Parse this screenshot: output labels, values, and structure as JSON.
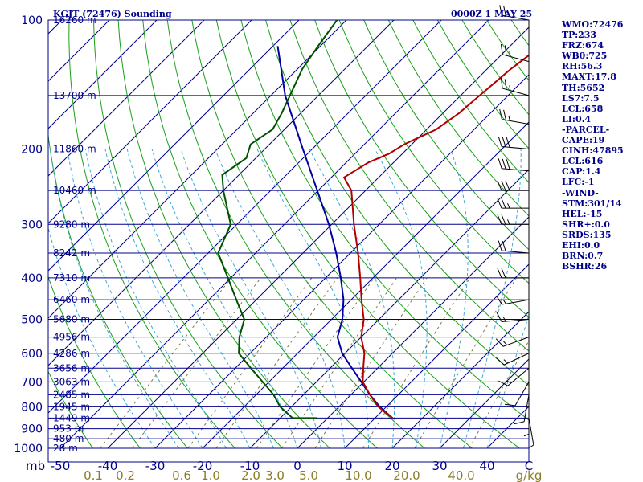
{
  "title_left": "KGJT (72476) Sounding",
  "title_right": "0000Z  1 MAY 25",
  "indices": [
    "WMO:72476",
    "TP:233",
    "FRZ:674",
    "WB0:725",
    "RH:56.3",
    "MAXT:17.8",
    "TH:5652",
    "LS7:7.5",
    "LCL:658",
    "LI:0.4",
    "-PARCEL-",
    "CAPE:19",
    "CINH:47895",
    "LCL:616",
    "CAP:1.4",
    "LFC:-1",
    "-WIND-",
    "STM:301/14",
    "HEL:-15",
    "SHR+:0.0",
    "SRDS:135",
    "EHI:0.0",
    "BRN:0.7",
    "BSHR:26"
  ],
  "chart_data": {
    "type": "line",
    "title": "KGJT (72476) Sounding",
    "xlabel": "",
    "ylabel": "mb",
    "xunit": "C",
    "mixing_ratio_unit": "g/kg",
    "pressure_ticks": [
      100,
      200,
      300,
      400,
      500,
      600,
      700,
      800,
      900,
      1000
    ],
    "temperature_ticks": [
      -50,
      -40,
      -30,
      -20,
      -10,
      0,
      10,
      20,
      30,
      40
    ],
    "mixing_ratio_ticks": [
      "0.1",
      "0.2",
      "0.6",
      "1.0",
      "2.0",
      "3.0",
      "5.0",
      "10.0",
      "20.0",
      "40.0"
    ],
    "height_labels": [
      {
        "p": 100,
        "label": "16260 m"
      },
      {
        "p": 150,
        "label": "13700 m"
      },
      {
        "p": 200,
        "label": "11860 m"
      },
      {
        "p": 250,
        "label": "10460 m"
      },
      {
        "p": 300,
        "label": "9280 m"
      },
      {
        "p": 350,
        "label": "8242 m"
      },
      {
        "p": 400,
        "label": "7310 m"
      },
      {
        "p": 450,
        "label": "6460 m"
      },
      {
        "p": 500,
        "label": "5680 m"
      },
      {
        "p": 550,
        "label": "4956 m"
      },
      {
        "p": 600,
        "label": "4286 m"
      },
      {
        "p": 650,
        "label": "3656 m"
      },
      {
        "p": 700,
        "label": "3063 m"
      },
      {
        "p": 750,
        "label": "2485 m"
      },
      {
        "p": 800,
        "label": "1945 m"
      },
      {
        "p": 850,
        "label": "1449 m"
      },
      {
        "p": 900,
        "label": "953 m"
      },
      {
        "p": 950,
        "label": "480 m"
      },
      {
        "p": 1000,
        "label": "28 m"
      }
    ],
    "temperature_profile": [
      {
        "p": 850,
        "t": 13.7
      },
      {
        "p": 800,
        "t": 8.3
      },
      {
        "p": 750,
        "t": 4.0
      },
      {
        "p": 700,
        "t": -0.2
      },
      {
        "p": 650,
        "t": -3.0
      },
      {
        "p": 600,
        "t": -5.9
      },
      {
        "p": 550,
        "t": -10.0
      },
      {
        "p": 500,
        "t": -13.2
      },
      {
        "p": 450,
        "t": -17.8
      },
      {
        "p": 400,
        "t": -22.7
      },
      {
        "p": 350,
        "t": -28.4
      },
      {
        "p": 300,
        "t": -35.3
      },
      {
        "p": 250,
        "t": -43.0
      },
      {
        "p": 233,
        "t": -47.3
      },
      {
        "p": 215,
        "t": -45.3
      },
      {
        "p": 205,
        "t": -42.8
      },
      {
        "p": 195,
        "t": -41.6
      },
      {
        "p": 180,
        "t": -38.0
      },
      {
        "p": 165,
        "t": -36.6
      },
      {
        "p": 150,
        "t": -36.0
      },
      {
        "p": 130,
        "t": -35.0
      },
      {
        "p": 115,
        "t": -33.5
      },
      {
        "p": 100,
        "t": -32.2
      }
    ],
    "dewpoint_profile": [
      {
        "p": 850,
        "t": -7.4
      },
      {
        "p": 800,
        "t": -12.4
      },
      {
        "p": 750,
        "t": -16.3
      },
      {
        "p": 700,
        "t": -21.3
      },
      {
        "p": 650,
        "t": -26.7
      },
      {
        "p": 600,
        "t": -32.4
      },
      {
        "p": 550,
        "t": -35.7
      },
      {
        "p": 500,
        "t": -38.4
      },
      {
        "p": 450,
        "t": -44.2
      },
      {
        "p": 400,
        "t": -50.6
      },
      {
        "p": 350,
        "t": -57.9
      },
      {
        "p": 300,
        "t": -61.3
      },
      {
        "p": 250,
        "t": -70.0
      },
      {
        "p": 230,
        "t": -73.5
      },
      {
        "p": 210,
        "t": -72.0
      },
      {
        "p": 195,
        "t": -74.0
      },
      {
        "p": 180,
        "t": -72.5
      },
      {
        "p": 165,
        "t": -74.0
      },
      {
        "p": 150,
        "t": -76.0
      },
      {
        "p": 130,
        "t": -79.0
      },
      {
        "p": 115,
        "t": -80.5
      },
      {
        "p": 100,
        "t": -82.0
      }
    ],
    "parcel_profile": [
      {
        "p": 850,
        "t": 13.7
      },
      {
        "p": 800,
        "t": 8.6
      },
      {
        "p": 750,
        "t": 4.0
      },
      {
        "p": 700,
        "t": -0.5
      },
      {
        "p": 650,
        "t": -5.4
      },
      {
        "p": 600,
        "t": -10.6
      },
      {
        "p": 550,
        "t": -15.0
      },
      {
        "p": 500,
        "t": -17.7
      },
      {
        "p": 450,
        "t": -21.6
      },
      {
        "p": 400,
        "t": -26.8
      },
      {
        "p": 350,
        "t": -33.0
      },
      {
        "p": 300,
        "t": -40.6
      },
      {
        "p": 250,
        "t": -50.2
      },
      {
        "p": 200,
        "t": -62.0
      },
      {
        "p": 150,
        "t": -77.0
      },
      {
        "p": 115,
        "t": -89.0
      }
    ],
    "wind_profile": [
      {
        "p": 100,
        "dir": 280,
        "spd": 20
      },
      {
        "p": 125,
        "dir": 285,
        "spd": 25
      },
      {
        "p": 150,
        "dir": 285,
        "spd": 25
      },
      {
        "p": 175,
        "dir": 280,
        "spd": 25
      },
      {
        "p": 200,
        "dir": 275,
        "spd": 30
      },
      {
        "p": 225,
        "dir": 275,
        "spd": 30
      },
      {
        "p": 250,
        "dir": 270,
        "spd": 30
      },
      {
        "p": 275,
        "dir": 270,
        "spd": 25
      },
      {
        "p": 300,
        "dir": 270,
        "spd": 25
      },
      {
        "p": 350,
        "dir": 275,
        "spd": 20
      },
      {
        "p": 400,
        "dir": 270,
        "spd": 20
      },
      {
        "p": 450,
        "dir": 260,
        "spd": 15
      },
      {
        "p": 500,
        "dir": 265,
        "spd": 15
      },
      {
        "p": 550,
        "dir": 250,
        "spd": 15
      },
      {
        "p": 600,
        "dir": 245,
        "spd": 15
      },
      {
        "p": 650,
        "dir": 230,
        "spd": 15
      },
      {
        "p": 700,
        "dir": 210,
        "spd": 10
      },
      {
        "p": 750,
        "dir": 190,
        "spd": 10
      },
      {
        "p": 800,
        "dir": 180,
        "spd": 5
      },
      {
        "p": 850,
        "dir": 170,
        "spd": 5
      }
    ]
  },
  "colors": {
    "axes": "#00008b",
    "isobar": "#00008b",
    "isotherm": "#00008b",
    "dry_adiabat": "#18a018",
    "moist_adiabat": "#3fa9d8",
    "mixing_ratio": "#7a7a4a",
    "temperature": "#b00000",
    "dewpoint": "#005000",
    "parcel": "#0000a0",
    "mixing_label": "#8b7d2a"
  }
}
